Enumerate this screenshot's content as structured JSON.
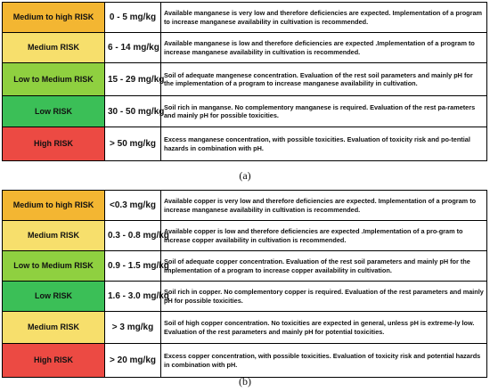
{
  "table_a": {
    "rows": [
      {
        "level": "Medium to high RISK",
        "range": "0 - 5 mg/kg",
        "desc": "Available manganese is very low and therefore deficiencies are expected. Implementation of a program to  increase manganese availability in cultivation is recommended.",
        "color": "#f3b632"
      },
      {
        "level": "Medium RISK",
        "range": "6 - 14 mg/kg",
        "desc": "Available manganese is low and therefore deficiencies are expected .Implementation of a program to  increase manganese availability in cultivation is recommended.",
        "color": "#f7df6c"
      },
      {
        "level": "Low to Medium RISK",
        "range": "15 - 29 mg/kg",
        "desc": "Soil of adequate mangenese concentration. Evaluation of the rest soil parameters and mainly pH for the implementation  of a program to increase manganese availability  in cultivation.",
        "color": "#8fd040"
      },
      {
        "level": "Low RISK",
        "range": "30 - 50 mg/kg",
        "desc": "Soil rich in manganse. No complementory manganese is required. Evaluation of the rest pa-rameters and mainly pH for possible toxicities.",
        "color": "#3bbf57"
      },
      {
        "level": "High RISK",
        "range": "> 50 mg/kg",
        "desc": "Excess manganese concentration, with possible toxicities. Evaluation of toxicity risk and po-tential hazards in combination with pH.",
        "color": "#ec4a43"
      }
    ],
    "caption": "(a)"
  },
  "table_b": {
    "rows": [
      {
        "level": "Medium to high RISK",
        "range": "<0.3 mg/kg",
        "desc": "Available copper is very low and therefore deficiencies are expected. Implementation of a program to  increase manganese availability in cultivation is recommended.",
        "color": "#f3b632"
      },
      {
        "level": "Medium RISK",
        "range": "0.3 - 0.8 mg/kg",
        "desc": "Available copper is low and therefore deficiencies are expected .Implementation of a pro-gram to  increase copper availability in cultivation is recommended.",
        "color": "#f7df6c"
      },
      {
        "level": "Low to Medium RISK",
        "range": "0.9 - 1.5 mg/kg",
        "desc": "Soil of adequate copper concentration. Evaluation of the rest soil parameters and mainly pH for the implementation  of a program to increase copper availability  in cultivation.",
        "color": "#8fd040"
      },
      {
        "level": "Low RISK",
        "range": "1.6 - 3.0 mg/kg",
        "desc": "Soil rich in copper. No complementory copper is required. Evaluation of the rest parameters and mainly pH for possible toxicities.",
        "color": "#3bbf57"
      },
      {
        "level": "Medium RISK",
        "range": "> 3 mg/kg",
        "desc": "Soil of high copper concentration. No toxicities are expected in general, unless pH is extreme-ly low. Evaluation of the rest parameters and mainly pH for potential toxicities.",
        "color": "#f7df6c"
      },
      {
        "level": "High RISK",
        "range": "> 20 mg/kg",
        "desc": "Excess copper concentration, with possible toxicities. Evaluation of toxicity risk and potential hazards in combination with pH.",
        "color": "#ec4a43"
      }
    ],
    "caption": "(b)"
  }
}
